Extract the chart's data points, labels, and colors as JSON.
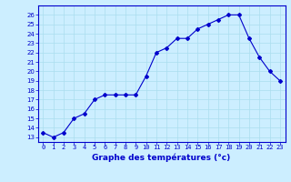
{
  "hours": [
    0,
    1,
    2,
    3,
    4,
    5,
    6,
    7,
    8,
    9,
    10,
    11,
    12,
    13,
    14,
    15,
    16,
    17,
    18,
    19,
    20,
    21,
    22,
    23
  ],
  "temps": [
    13.5,
    13.0,
    13.5,
    15.0,
    15.5,
    17.0,
    17.5,
    17.5,
    17.5,
    17.5,
    19.5,
    22.0,
    22.5,
    23.5,
    23.5,
    24.5,
    25.0,
    25.5,
    26.0,
    26.0,
    23.5,
    21.5,
    20.0,
    19.0
  ],
  "line_color": "#0000cc",
  "marker": "D",
  "marker_size": 2.0,
  "bg_color": "#cceeff",
  "grid_color": "#aaddee",
  "xlabel": "Graphe des températures (°c)",
  "xlim": [
    -0.5,
    23.5
  ],
  "ylim": [
    12.5,
    27.0
  ],
  "yticks": [
    13,
    14,
    15,
    16,
    17,
    18,
    19,
    20,
    21,
    22,
    23,
    24,
    25,
    26
  ],
  "xtick_labels": [
    "0",
    "1",
    "2",
    "3",
    "4",
    "5",
    "6",
    "7",
    "8",
    "9",
    "10",
    "11",
    "12",
    "13",
    "14",
    "15",
    "16",
    "17",
    "18",
    "19",
    "20",
    "21",
    "22",
    "23"
  ],
  "tick_color": "#0000cc",
  "label_color": "#0000cc",
  "tick_fontsize": 5.0,
  "xlabel_fontsize": 6.5
}
